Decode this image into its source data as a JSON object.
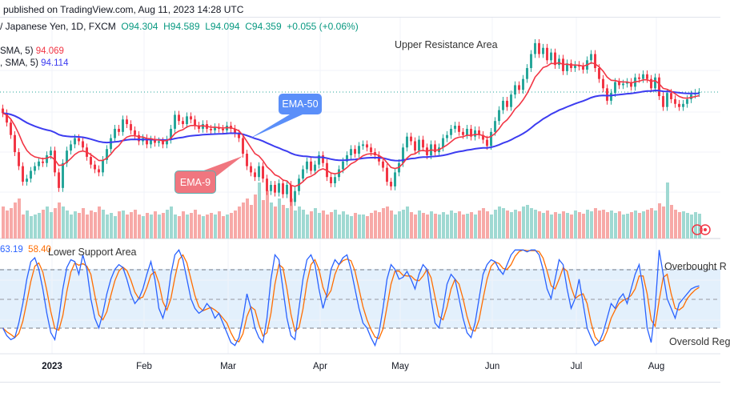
{
  "header": {
    "published": "published on TradingView.com, Aug 11, 2023 14:28 UTC",
    "symbol": "/ Japanese Yen, 1D, FXCM",
    "open": "O94.304",
    "high": "H94.589",
    "low": "L94.094",
    "close": "C94.359",
    "change": "+0.055 (+0.06%)"
  },
  "legend": {
    "ema9_label": "SMA, 5)",
    "ema9_value": "94.069",
    "ema50_label": ", SMA, 5)",
    "ema50_value": "94.114",
    "stoch_k_value": "63.19",
    "stoch_d_value": "58.40"
  },
  "annotations": {
    "upper": "Upper Resistance Area",
    "lower": "Lower Support Area",
    "overbought": "Overbought R",
    "oversold": "Oversold Reg",
    "ema50_callout": "EMA-50",
    "ema9_callout": "EMA-9"
  },
  "colors": {
    "up": "#26a69a",
    "down": "#f23645",
    "ema9": "#f23645",
    "ema50": "#3c3cf0",
    "stoch_k": "#2962ff",
    "stoch_d": "#ff6d00",
    "band_fill": "#e3f0fc",
    "ema50_callout": "#5b8ff9",
    "ema9_callout": "#f0767f"
  },
  "icons": [
    "replay-circle-icon"
  ],
  "chart_data": [
    {
      "type": "candlestick",
      "title": "",
      "series": [
        {
          "name": "close",
          "values": [
            93.0,
            92.4,
            91.6,
            90.5,
            89.6,
            88.6,
            88.8,
            89.3,
            89.6,
            89.9,
            89.8,
            90.3,
            90.6,
            89.2,
            88.2,
            89.8,
            90.6,
            91.0,
            91.4,
            91.2,
            90.8,
            90.2,
            89.7,
            89.4,
            89.2,
            90.0,
            90.7,
            91.4,
            92.0,
            91.8,
            92.6,
            92.3,
            91.9,
            91.6,
            91.2,
            91.4,
            91.0,
            91.3,
            91.1,
            91.2,
            91.0,
            91.3,
            92.0,
            92.9,
            92.5,
            92.3,
            92.8,
            92.6,
            92.2,
            92.0,
            92.3,
            92.0,
            91.9,
            92.1,
            92.0,
            91.9,
            92.2,
            92.0,
            91.7,
            91.4,
            90.4,
            89.6,
            89.2,
            88.9,
            89.6,
            88.8,
            88.0,
            88.4,
            87.9,
            88.5,
            87.8,
            88.4,
            87.3,
            88.0,
            88.8,
            89.4,
            89.9,
            89.3,
            89.7,
            90.3,
            89.8,
            88.9,
            88.5,
            88.9,
            89.4,
            89.9,
            90.3,
            90.7,
            90.4,
            90.9,
            91.0,
            90.8,
            90.5,
            90.3,
            89.9,
            89.5,
            88.6,
            88.3,
            89.2,
            89.8,
            90.8,
            91.5,
            91.2,
            90.6,
            91.3,
            90.8,
            90.3,
            91.0,
            90.5,
            90.8,
            91.4,
            91.6,
            92.0,
            92.2,
            91.8,
            91.6,
            92.0,
            91.5,
            91.9,
            91.6,
            91.3,
            90.9,
            91.8,
            92.5,
            93.2,
            93.8,
            93.4,
            94.2,
            94.8,
            94.5,
            95.2,
            95.9,
            96.8,
            97.5,
            96.8,
            97.2,
            96.4,
            96.9,
            96.1,
            96.5,
            95.7,
            96.2,
            95.9,
            96.1,
            96.0,
            95.8,
            96.4,
            96.8,
            95.9,
            95.2,
            94.6,
            93.8,
            94.3,
            95.0,
            94.8,
            94.9,
            95.0,
            94.7,
            95.3,
            95.2,
            95.5,
            95.2,
            94.6,
            95.3,
            94.1,
            93.4,
            94.3,
            93.9,
            93.6,
            93.4,
            93.6,
            93.9,
            94.2,
            94.3,
            94.36
          ]
        },
        {
          "name": "volume",
          "values": [
            40,
            35,
            38,
            45,
            50,
            30,
            35,
            28,
            30,
            32,
            36,
            40,
            33,
            38,
            45,
            40,
            35,
            30,
            34,
            32,
            38,
            30,
            35,
            33,
            40,
            36,
            30,
            32,
            28,
            34,
            35,
            30,
            33,
            36,
            30,
            28,
            32,
            30,
            34,
            30,
            32,
            36,
            40,
            30,
            28,
            34,
            30,
            32,
            36,
            30,
            28,
            30,
            32,
            30,
            34,
            28,
            30,
            32,
            35,
            40,
            45,
            50,
            42,
            55,
            70,
            48,
            60,
            45,
            40,
            50,
            42,
            38,
            50,
            35,
            40,
            36,
            30,
            34,
            38,
            32,
            35,
            30,
            33,
            36,
            30,
            34,
            30,
            28,
            32,
            30,
            30,
            28,
            32,
            35,
            33,
            38,
            40,
            35,
            30,
            34,
            36,
            40,
            33,
            30,
            35,
            32,
            30,
            34,
            31,
            30,
            33,
            30,
            35,
            32,
            34,
            30,
            31,
            33,
            30,
            35,
            38,
            34,
            30,
            36,
            40,
            38,
            35,
            33,
            36,
            34,
            40,
            42,
            38,
            36,
            34,
            32,
            35,
            30,
            33,
            31,
            34,
            32,
            30,
            35,
            33,
            31,
            36,
            34,
            38,
            35,
            36,
            33,
            35,
            32,
            34,
            30,
            31,
            33,
            35,
            32,
            34,
            36,
            38,
            35,
            44,
            40,
            70,
            42,
            36,
            33,
            34,
            32,
            30,
            33,
            31
          ]
        }
      ],
      "x_tick_labels": [
        {
          "label": "2023",
          "bar": 12
        },
        {
          "label": "Feb",
          "bar": 35
        },
        {
          "label": "Mar",
          "bar": 56
        },
        {
          "label": "Apr",
          "bar": 79
        },
        {
          "label": "May",
          "bar": 99
        },
        {
          "label": "Jun",
          "bar": 122
        },
        {
          "label": "Jul",
          "bar": 143
        },
        {
          "label": "Aug",
          "bar": 163
        }
      ],
      "last_price": 94.359,
      "overlays": [
        "EMA-9",
        "EMA-50"
      ]
    },
    {
      "type": "line",
      "title": "",
      "ylim": [
        0,
        100
      ],
      "bands": {
        "upper": 80,
        "middle": 50,
        "lower": 20
      },
      "series": [
        {
          "name": "K",
          "values": [
            20,
            12,
            8,
            10,
            25,
            45,
            70,
            88,
            92,
            80,
            60,
            35,
            15,
            8,
            30,
            60,
            82,
            90,
            88,
            75,
            95,
            80,
            50,
            30,
            20,
            35,
            55,
            70,
            80,
            85,
            82,
            70,
            55,
            45,
            50,
            60,
            75,
            88,
            70,
            40,
            30,
            45,
            75,
            95,
            100,
            90,
            70,
            50,
            40,
            35,
            38,
            45,
            40,
            30,
            35,
            25,
            15,
            5,
            2,
            10,
            30,
            55,
            40,
            20,
            10,
            5,
            30,
            70,
            95,
            90,
            60,
            30,
            12,
            8,
            40,
            70,
            90,
            95,
            85,
            60,
            40,
            55,
            80,
            90,
            85,
            92,
            95,
            80,
            60,
            40,
            25,
            20,
            10,
            2,
            15,
            40,
            70,
            85,
            80,
            70,
            72,
            78,
            70,
            60,
            75,
            85,
            80,
            50,
            25,
            20,
            40,
            65,
            75,
            70,
            50,
            30,
            15,
            10,
            25,
            50,
            75,
            85,
            90,
            88,
            80,
            75,
            85,
            95,
            100,
            100,
            100,
            98,
            100,
            100,
            95,
            80,
            60,
            50,
            70,
            90,
            85,
            60,
            40,
            50,
            70,
            45,
            20,
            10,
            2,
            5,
            15,
            30,
            45,
            40,
            50,
            55,
            45,
            60,
            75,
            85,
            60,
            20,
            5,
            40,
            100,
            75,
            50,
            40,
            30,
            45,
            50,
            55,
            60,
            62,
            63.19
          ]
        }
      ]
    }
  ]
}
